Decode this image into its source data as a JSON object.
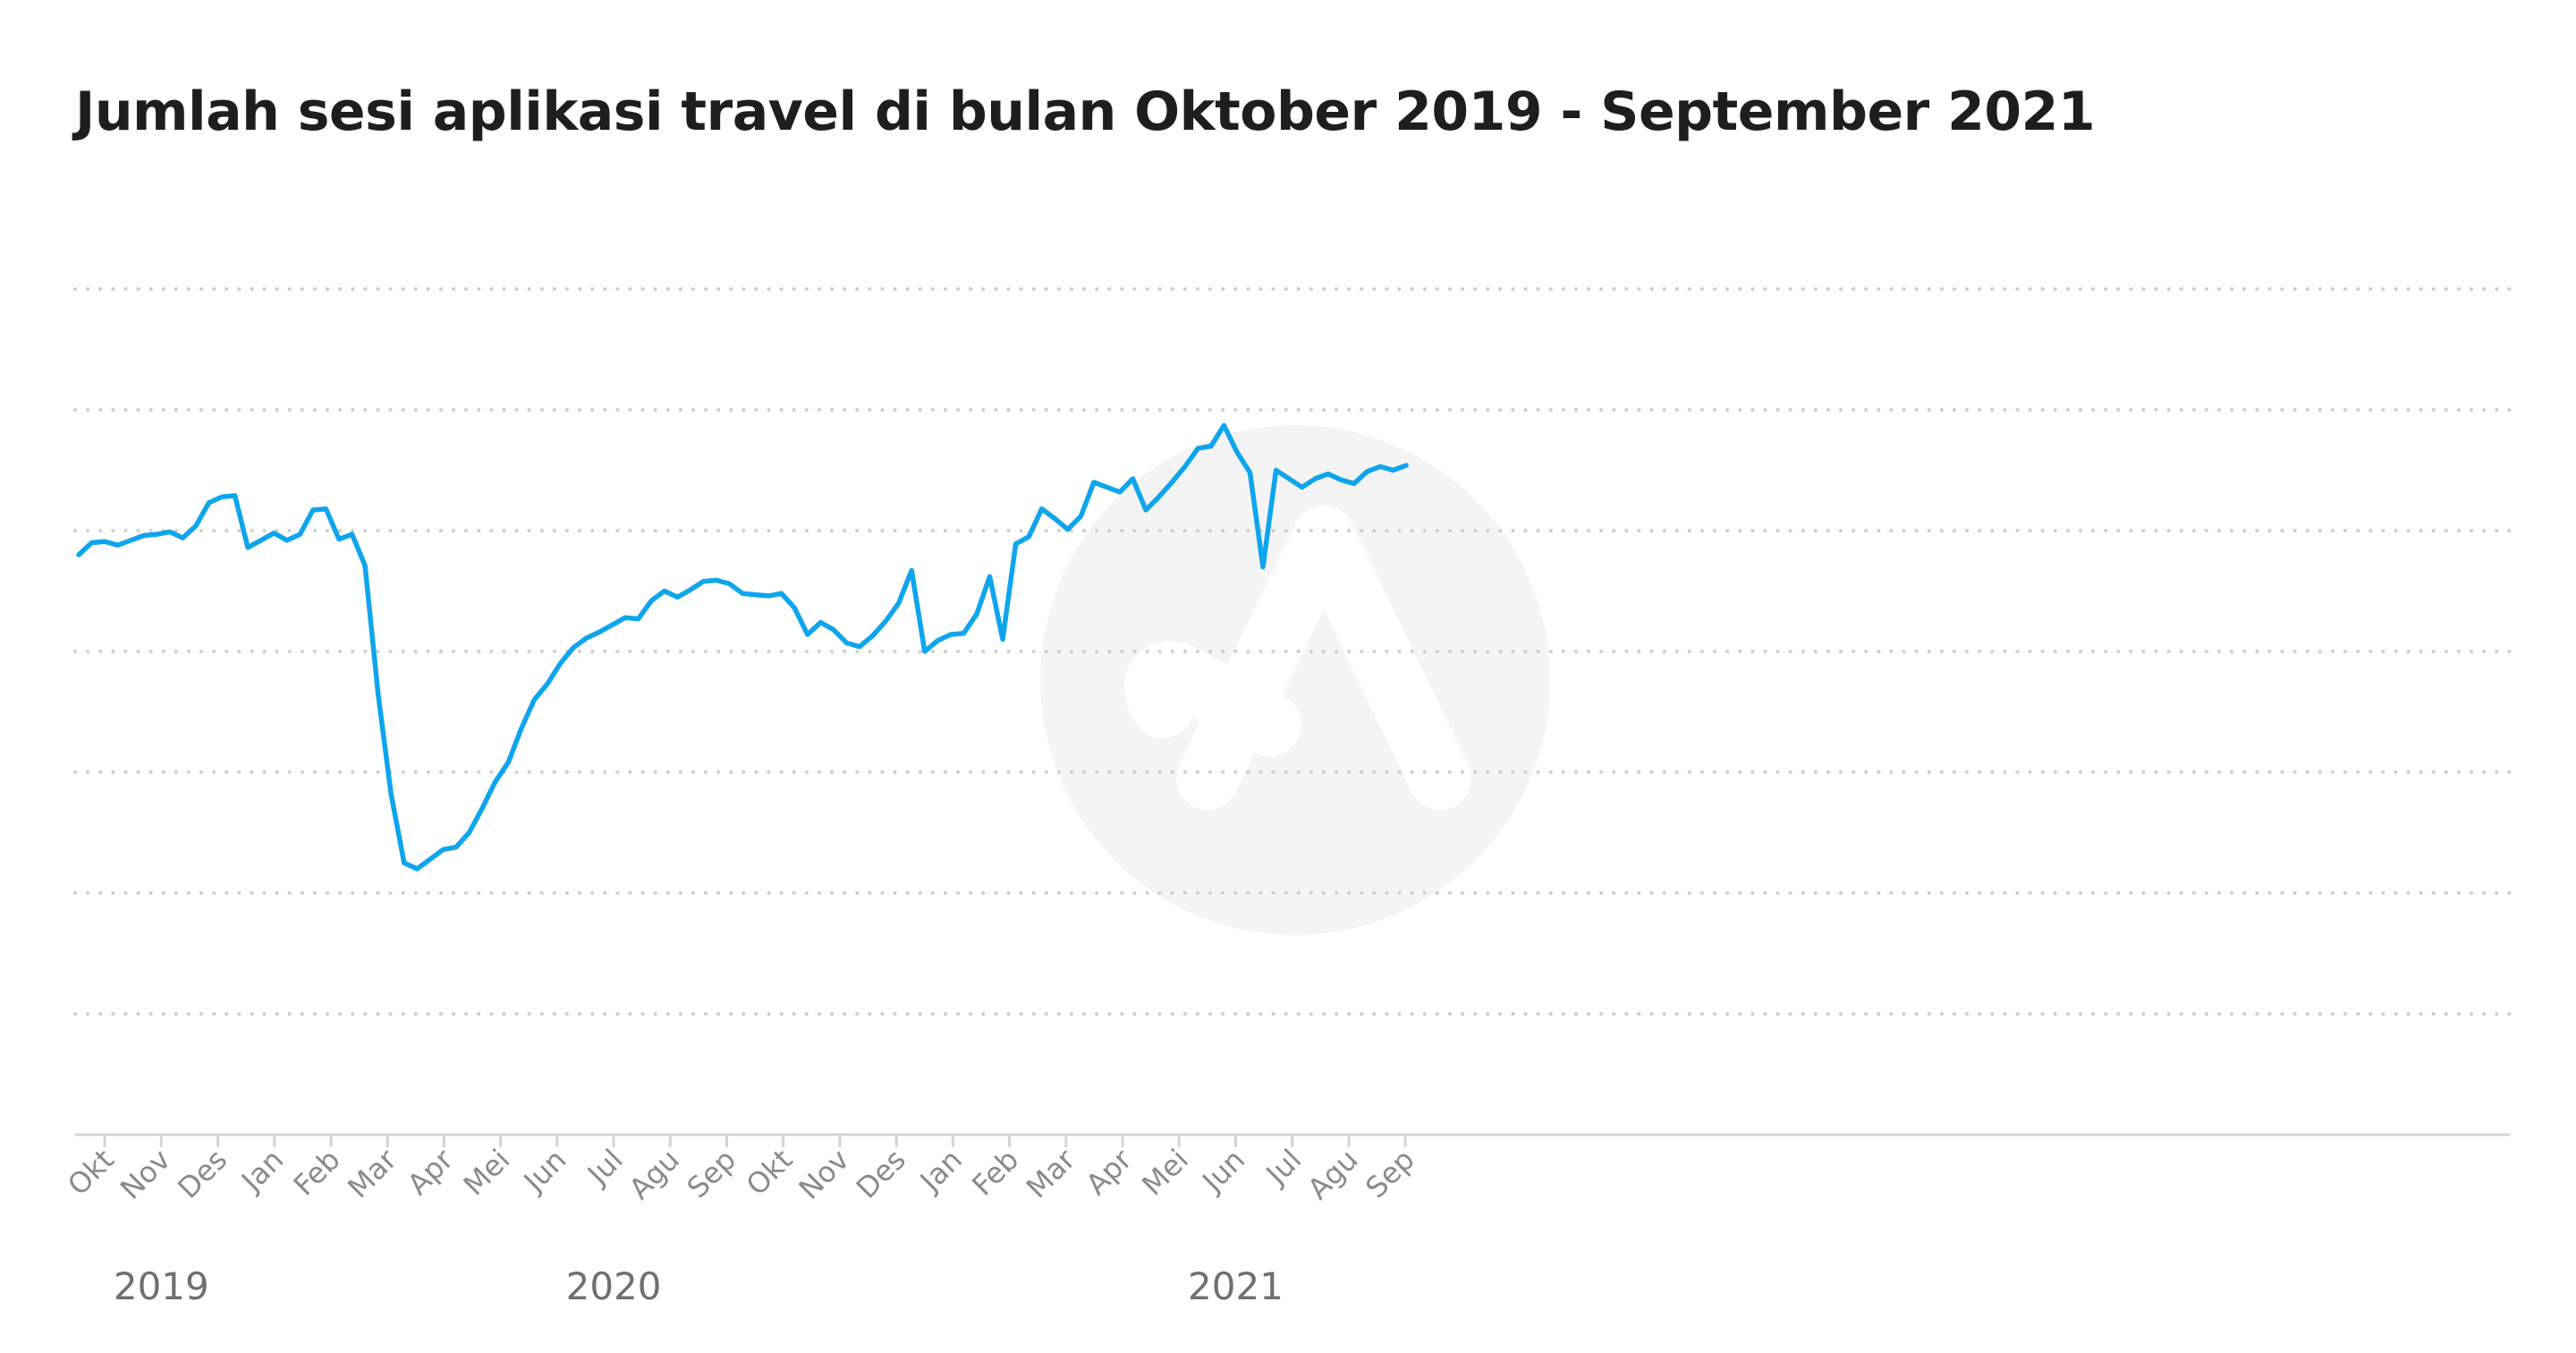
{
  "title": "Jumlah sesi aplikasi travel di bulan Oktober 2019 - September 2021",
  "colors": {
    "line": "#0ea5ec",
    "grid": "#cfcfcf",
    "text": "#1e1e1e",
    "axis_label": "#8a8a8a"
  },
  "watermark": "logo-watermark",
  "chart_data": {
    "type": "line",
    "title": "Jumlah sesi aplikasi travel di bulan Oktober 2019 - September 2021",
    "xlabel": "",
    "ylabel": "",
    "y_tick_labels_shown": false,
    "grid": true,
    "ylim": [
      0,
      7
    ],
    "x_tick_labels": [
      "Okt",
      "Nov",
      "Des",
      "Jan",
      "Feb",
      "Mar",
      "Apr",
      "Mei",
      "Jun",
      "Jul",
      "Agu",
      "Sep",
      "Okt",
      "Nov",
      "Des",
      "Jan",
      "Feb",
      "Mar",
      "Apr",
      "Mei",
      "Jun",
      "Jul",
      "Agu",
      "Sep"
    ],
    "year_labels": [
      {
        "label": "2019",
        "at_tick": 1
      },
      {
        "label": "2020",
        "at_tick": 9
      },
      {
        "label": "2021",
        "at_tick": 20
      }
    ],
    "series": [
      {
        "x_start": "2019-09-23",
        "x_step_days": 7,
        "values": [
          4.8,
          4.9,
          4.91,
          4.88,
          4.92,
          4.96,
          4.97,
          4.99,
          4.94,
          5.04,
          5.23,
          5.28,
          5.29,
          4.86,
          4.92,
          4.98,
          4.92,
          4.97,
          5.17,
          5.18,
          4.93,
          4.97,
          4.71,
          3.65,
          2.82,
          2.25,
          2.2,
          2.28,
          2.36,
          2.38,
          2.5,
          2.7,
          2.92,
          3.08,
          3.36,
          3.6,
          3.73,
          3.9,
          4.03,
          4.11,
          4.16,
          4.22,
          4.28,
          4.27,
          4.42,
          4.5,
          4.45,
          4.51,
          4.58,
          4.59,
          4.56,
          4.48,
          4.47,
          4.46,
          4.48,
          4.36,
          4.14,
          4.24,
          4.18,
          4.07,
          4.04,
          4.13,
          4.25,
          4.4,
          4.67,
          4.0,
          4.09,
          4.14,
          4.15,
          4.31,
          4.62,
          4.1,
          4.89,
          4.95,
          5.18,
          5.1,
          5.01,
          5.12,
          5.4,
          5.36,
          5.32,
          5.43,
          5.17,
          5.28,
          5.4,
          5.53,
          5.68,
          5.7,
          5.87,
          5.65,
          5.48,
          4.7,
          5.5,
          5.43,
          5.36,
          5.43,
          5.47,
          5.42,
          5.39,
          5.49,
          5.53,
          5.5,
          5.54
        ]
      }
    ]
  }
}
